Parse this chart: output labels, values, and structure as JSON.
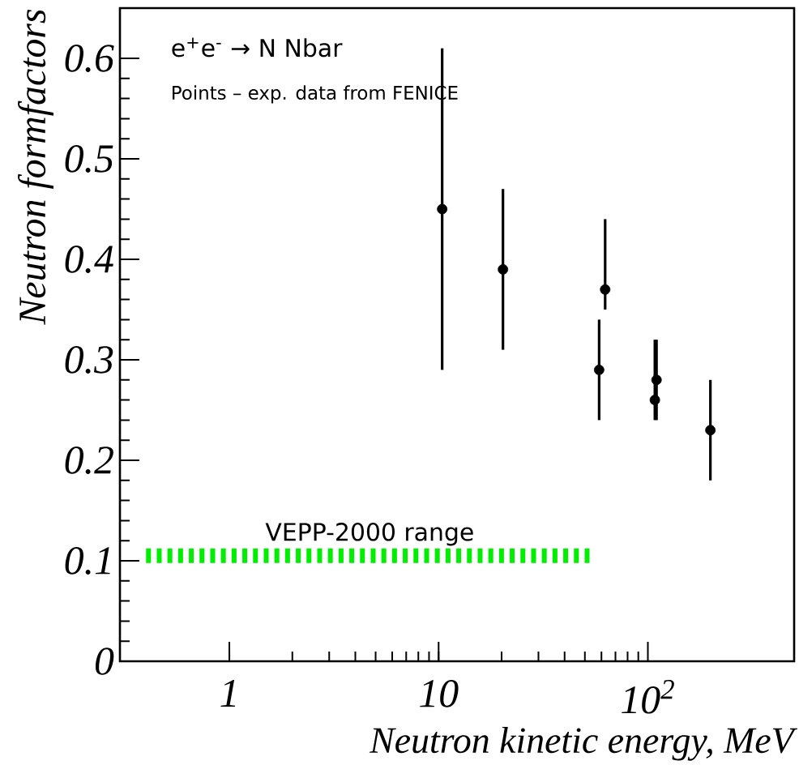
{
  "chart_data": {
    "type": "scatter",
    "xlabel": "Neutron kinetic energy, MeV",
    "ylabel": "Neutron formfactors",
    "annotations": [
      "e$^{+}$e$^{-}$ → N Nbar",
      "Points – exp. data from FENICE"
    ],
    "log": "x",
    "xlim": [
      0.3,
      500
    ],
    "ylim": [
      0,
      0.65
    ],
    "xticks": [
      1,
      10,
      {
        "value": 100,
        "label": "10$^{2}$"
      }
    ],
    "yticks": [
      0,
      0.1,
      0.2,
      0.3,
      0.4,
      0.5,
      0.6
    ],
    "grid": false,
    "series": [
      {
        "color": "#000000",
        "marker": "circle",
        "x": [
          10.4,
          20.3,
          58.5,
          62.5,
          108,
          110,
          199
        ],
        "values": [
          0.45,
          0.39,
          0.29,
          0.37,
          0.26,
          0.28,
          0.23
        ],
        "errors": [
          [
            0.29,
            0.61
          ],
          [
            0.31,
            0.47
          ],
          [
            0.24,
            0.34
          ],
          [
            0.35,
            0.44
          ],
          [
            0.24,
            0.32
          ],
          [
            0.24,
            0.32
          ],
          [
            0.18,
            0.28
          ]
        ]
      },
      {
        "type": "line",
        "name": "VEPP-2000 range",
        "color": "#00ee00",
        "line_style": "dashed",
        "marker": "none",
        "x": [
          0.4,
          55
        ],
        "values": [
          0.105,
          0.105
        ]
      }
    ]
  }
}
